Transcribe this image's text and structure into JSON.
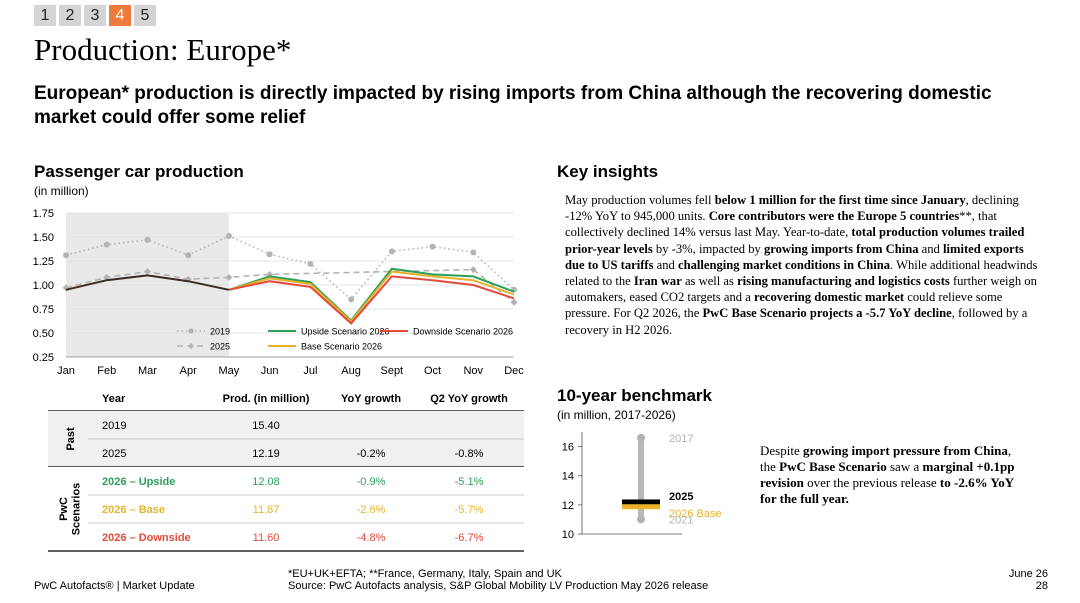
{
  "pager": {
    "pages": [
      "1",
      "2",
      "3",
      "4",
      "5"
    ],
    "active_index": 3,
    "active_color": "#ee7a3b"
  },
  "title": "Production: Europe*",
  "subtitle": "European* production is directly impacted by rising imports from China although the recovering domestic market could offer some relief",
  "chart_section": {
    "title": "Passenger car production",
    "unit": "(in million)"
  },
  "insights": {
    "title": "Key insights",
    "segments": [
      {
        "t": "May production volumes fell ",
        "b": false
      },
      {
        "t": "below 1 million for the first time since January",
        "b": true
      },
      {
        "t": ", declining -12% YoY to 945,000 units. ",
        "b": false
      },
      {
        "t": "Core contributors were the Europe 5 countries",
        "b": true
      },
      {
        "t": "**, that collectively declined 14% versus last May. Year-to-date, ",
        "b": false
      },
      {
        "t": "total production volumes trailed prior-year levels",
        "b": true
      },
      {
        "t": " by -3%, impacted by ",
        "b": false
      },
      {
        "t": "growing imports from China",
        "b": true
      },
      {
        "t": " and ",
        "b": false
      },
      {
        "t": "limited exports due to US tariffs",
        "b": true
      },
      {
        "t": " and ",
        "b": false
      },
      {
        "t": "challenging market conditions in China",
        "b": true
      },
      {
        "t": ". While additional headwinds related to the ",
        "b": false
      },
      {
        "t": "Iran war",
        "b": true
      },
      {
        "t": " as well as ",
        "b": false
      },
      {
        "t": "rising manufacturing and logistics costs",
        "b": true
      },
      {
        "t": " further weigh on automakers, eased CO2 targets and a ",
        "b": false
      },
      {
        "t": "recovering domestic market",
        "b": true
      },
      {
        "t": " could relieve some pressure. For Q2 2026, the ",
        "b": false
      },
      {
        "t": "PwC Base Scenario projects a -5.7 YoY decline",
        "b": true
      },
      {
        "t": ", followed by a recovery in H2 2026.",
        "b": false
      }
    ]
  },
  "benchmark": {
    "title": "10-year benchmark",
    "unit": "(in million, 2017-2026)",
    "text_segments": [
      {
        "t": "Despite ",
        "b": false
      },
      {
        "t": "growing import pressure from China",
        "b": true
      },
      {
        "t": ", the ",
        "b": false
      },
      {
        "t": "PwC Base Scenario",
        "b": true
      },
      {
        "t": " saw a ",
        "b": false
      },
      {
        "t": "marginal +0.1pp revision",
        "b": true
      },
      {
        "t": " over the previous release ",
        "b": false
      },
      {
        "t": "to -2.6% YoY for the full year.",
        "b": true
      }
    ]
  },
  "chart_data": [
    {
      "type": "line",
      "categories": [
        "Jan",
        "Feb",
        "Mar",
        "Apr",
        "May",
        "Jun",
        "Jul",
        "Aug",
        "Sept",
        "Oct",
        "Nov",
        "Dec"
      ],
      "ylim": [
        0.25,
        1.75
      ],
      "yticks": [
        "0.25",
        "0.50",
        "0.75",
        "1.00",
        "1.25",
        "1.50",
        "1.75"
      ],
      "shaded_region": [
        "Jan",
        "May"
      ],
      "series": [
        {
          "name": "2019",
          "color": "#b3b3b3",
          "style": "dotted",
          "values": [
            1.31,
            1.42,
            1.47,
            1.31,
            1.51,
            1.32,
            1.22,
            0.85,
            1.35,
            1.4,
            1.34,
            0.95
          ]
        },
        {
          "name": "2025",
          "color": "#b3b3b3",
          "style": "dashed",
          "values": [
            0.97,
            1.08,
            1.14,
            1.06,
            1.08,
            1.11,
            null,
            null,
            null,
            null,
            1.16,
            0.82
          ]
        },
        {
          "name": "Upside Scenario 2026",
          "color": "#2ca05a",
          "style": "solid",
          "values": [
            null,
            null,
            null,
            null,
            0.95,
            1.09,
            1.03,
            0.63,
            1.17,
            1.11,
            1.09,
            0.93
          ]
        },
        {
          "name": "Base Scenario 2026",
          "color": "#e8b22a",
          "style": "solid",
          "values": [
            null,
            null,
            null,
            null,
            0.95,
            1.07,
            1.01,
            0.62,
            1.14,
            1.09,
            1.05,
            0.9
          ]
        },
        {
          "name": "Downside Scenario 2026",
          "color": "#e34a3c",
          "style": "solid",
          "values": [
            null,
            null,
            null,
            null,
            0.95,
            1.04,
            0.98,
            0.6,
            1.09,
            1.05,
            1.0,
            0.86
          ]
        },
        {
          "name": "",
          "color": "#3b2a22",
          "style": "solid",
          "values": [
            0.95,
            1.05,
            1.1,
            1.04,
            0.95,
            null,
            null,
            null,
            null,
            null,
            null,
            null
          ]
        }
      ],
      "legend": [
        {
          "label": "2019",
          "color": "#b3b3b3",
          "style": "dotted"
        },
        {
          "label": "Upside Scenario 2026",
          "color": "#2ca05a",
          "style": "solid"
        },
        {
          "label": "Downside Scenario 2026",
          "color": "#e34a3c",
          "style": "solid"
        },
        {
          "label": "2025",
          "color": "#b3b3b3",
          "style": "dashed"
        },
        {
          "label": "Base Scenario 2026",
          "color": "#e8b22a",
          "style": "solid"
        }
      ],
      "legend_position": "bottom-center"
    },
    {
      "type": "table",
      "headers": [
        "Year",
        "Prod. (in million)",
        "YoY growth",
        "Q2 YoY growth"
      ],
      "groups": [
        {
          "label": "Past",
          "rows": [
            {
              "year": "2019",
              "prod": "15.40",
              "yoy": "",
              "q2": "",
              "color": "#000000"
            },
            {
              "year": "2025",
              "prod": "12.19",
              "yoy": "-0.2%",
              "q2": "-0.8%",
              "color": "#000000"
            }
          ]
        },
        {
          "label": "PwC Scenarios",
          "rows": [
            {
              "year": "2026 – Upside",
              "prod": "12.08",
              "yoy": "-0.9%",
              "q2": "-5.1%",
              "color": "#2ca05a"
            },
            {
              "year": "2026 – Base",
              "prod": "11.87",
              "yoy": "-2.6%",
              "q2": "-5.7%",
              "color": "#e8b22a"
            },
            {
              "year": "2026 – Downside",
              "prod": "11.60",
              "yoy": "-4.8%",
              "q2": "-6.7%",
              "color": "#e34a3c"
            }
          ]
        }
      ]
    },
    {
      "type": "scatter",
      "ylim": [
        10,
        17
      ],
      "yticks": [
        "10",
        "12",
        "14",
        "16"
      ],
      "range": [
        11,
        16.6
      ],
      "markers": [
        {
          "label": "2017",
          "value": 16.6,
          "shape": "dot",
          "color": "#b3b3b3"
        },
        {
          "label": "2025",
          "value": 12.2,
          "shape": "bar",
          "color": "#000000"
        },
        {
          "label": "2026 Base",
          "value": 11.87,
          "shape": "bar",
          "color": "#e8b22a"
        },
        {
          "label": "2021",
          "value": 11.0,
          "shape": "dot",
          "color": "#b3b3b3"
        }
      ]
    }
  ],
  "footer": {
    "left": "PwC Autofacts® | Market Update",
    "note1": "*EU+UK+EFTA; **France, Germany, Italy, Spain and UK",
    "note2": "Source: PwC Autofacts analysis, S&P Global Mobility LV Production May 2026 release",
    "date": "June 26",
    "page": "28"
  }
}
